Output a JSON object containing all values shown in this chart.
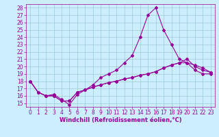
{
  "xlabel": "Windchill (Refroidissement éolien,°C)",
  "bg_color": "#cceeff",
  "line_color": "#990099",
  "grid_color": "#99cccc",
  "xlim": [
    -0.5,
    23.5
  ],
  "ylim": [
    14.5,
    28.5
  ],
  "yticks": [
    15,
    16,
    17,
    18,
    19,
    20,
    21,
    22,
    23,
    24,
    25,
    26,
    27,
    28
  ],
  "xticks": [
    0,
    1,
    2,
    3,
    4,
    5,
    6,
    7,
    8,
    9,
    10,
    11,
    12,
    13,
    14,
    15,
    16,
    17,
    18,
    19,
    20,
    21,
    22,
    23
  ],
  "line1_x": [
    0,
    1,
    2,
    3,
    4,
    5,
    6,
    7,
    8,
    9,
    10,
    11,
    12,
    13,
    14,
    15,
    16,
    17,
    18,
    19,
    20,
    21,
    22,
    23
  ],
  "line1_y": [
    18.0,
    16.5,
    16.0,
    16.2,
    15.5,
    14.8,
    16.2,
    16.8,
    17.5,
    18.5,
    19.0,
    19.5,
    20.5,
    21.5,
    24.0,
    27.0,
    28.0,
    25.0,
    23.0,
    21.0,
    20.5,
    19.5,
    19.0,
    19.0
  ],
  "line2_x": [
    0,
    1,
    2,
    3,
    4,
    5,
    6,
    7,
    8,
    9,
    10,
    11,
    12,
    13,
    14,
    15,
    16,
    17,
    18,
    19,
    20,
    21,
    22,
    23
  ],
  "line2_y": [
    18.0,
    16.5,
    16.0,
    16.0,
    15.3,
    15.3,
    16.5,
    16.8,
    17.2,
    17.5,
    17.8,
    18.0,
    18.3,
    18.5,
    18.8,
    19.0,
    19.3,
    19.8,
    20.2,
    20.5,
    21.0,
    20.0,
    19.5,
    19.2
  ],
  "line3_x": [
    0,
    1,
    2,
    3,
    4,
    5,
    6,
    7,
    8,
    9,
    10,
    11,
    12,
    13,
    14,
    15,
    16,
    17,
    18,
    19,
    20,
    21,
    22,
    23
  ],
  "line3_y": [
    18.0,
    16.5,
    16.0,
    16.0,
    15.3,
    15.3,
    16.5,
    16.8,
    17.2,
    17.5,
    17.8,
    18.0,
    18.3,
    18.5,
    18.8,
    19.0,
    19.3,
    19.8,
    20.2,
    20.5,
    20.5,
    20.2,
    19.8,
    19.2
  ],
  "marker": "D",
  "marker_size": 2.0,
  "line_width": 0.8,
  "font_size_xlabel": 6,
  "font_size_ticks": 5.5
}
